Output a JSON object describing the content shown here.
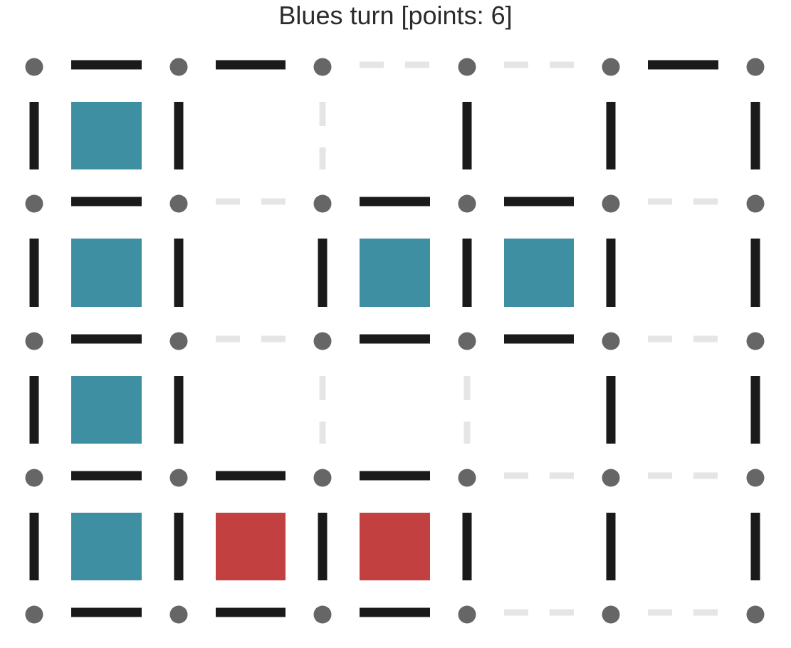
{
  "status": {
    "text": "Blues turn [points: 6]",
    "player": "Blue",
    "points": 6
  },
  "colors": {
    "blue": "#3f8fa3",
    "red": "#c24040",
    "dot": "#666666",
    "drawn_line": "#1a1a1a",
    "open_line": "#e5e5e5",
    "background": "#ffffff"
  },
  "board": {
    "dot_rows": 5,
    "dot_cols": 6,
    "horizontal_lines": [
      [
        1,
        1,
        0,
        0,
        1
      ],
      [
        1,
        0,
        1,
        1,
        0
      ],
      [
        1,
        0,
        1,
        1,
        0
      ],
      [
        1,
        1,
        1,
        0,
        0
      ],
      [
        1,
        1,
        1,
        0,
        0
      ]
    ],
    "vertical_lines": [
      [
        1,
        1,
        0,
        1,
        1,
        1
      ],
      [
        1,
        1,
        1,
        1,
        1,
        1
      ],
      [
        1,
        1,
        0,
        0,
        1,
        1
      ],
      [
        1,
        1,
        1,
        1,
        1,
        1
      ]
    ],
    "boxes": [
      [
        "blue",
        null,
        null,
        null,
        null
      ],
      [
        "blue",
        null,
        "blue",
        "blue",
        null
      ],
      [
        "blue",
        null,
        null,
        null,
        null
      ],
      [
        "blue",
        "red",
        "red",
        null,
        null
      ]
    ]
  }
}
